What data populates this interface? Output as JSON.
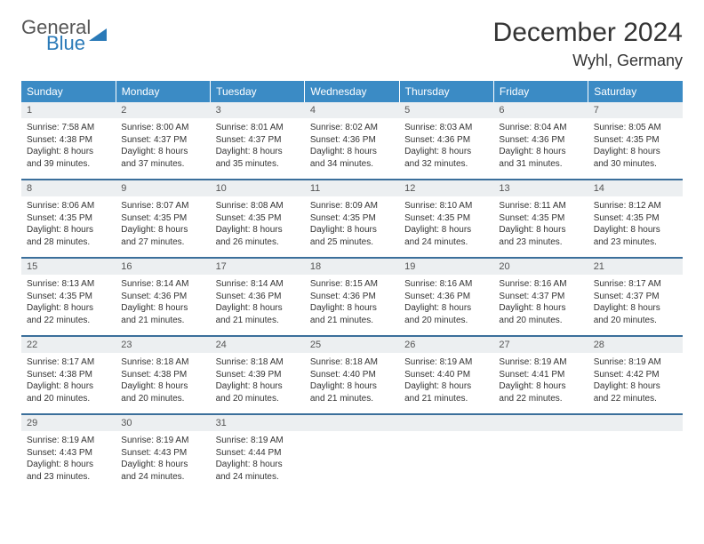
{
  "logo": {
    "general": "General",
    "blue": "Blue"
  },
  "title": "December 2024",
  "location": "Wyhl, Germany",
  "colors": {
    "header_bg": "#3b8bc5",
    "header_text": "#ffffff",
    "daynum_bg": "#eceff1",
    "border": "#3b6f9b",
    "logo_blue": "#2a7ab8",
    "text": "#333333"
  },
  "day_headers": [
    "Sunday",
    "Monday",
    "Tuesday",
    "Wednesday",
    "Thursday",
    "Friday",
    "Saturday"
  ],
  "weeks": [
    [
      {
        "n": "1",
        "sr": "7:58 AM",
        "ss": "4:38 PM",
        "dlh": "8",
        "dlm": "39"
      },
      {
        "n": "2",
        "sr": "8:00 AM",
        "ss": "4:37 PM",
        "dlh": "8",
        "dlm": "37"
      },
      {
        "n": "3",
        "sr": "8:01 AM",
        "ss": "4:37 PM",
        "dlh": "8",
        "dlm": "35"
      },
      {
        "n": "4",
        "sr": "8:02 AM",
        "ss": "4:36 PM",
        "dlh": "8",
        "dlm": "34"
      },
      {
        "n": "5",
        "sr": "8:03 AM",
        "ss": "4:36 PM",
        "dlh": "8",
        "dlm": "32"
      },
      {
        "n": "6",
        "sr": "8:04 AM",
        "ss": "4:36 PM",
        "dlh": "8",
        "dlm": "31"
      },
      {
        "n": "7",
        "sr": "8:05 AM",
        "ss": "4:35 PM",
        "dlh": "8",
        "dlm": "30"
      }
    ],
    [
      {
        "n": "8",
        "sr": "8:06 AM",
        "ss": "4:35 PM",
        "dlh": "8",
        "dlm": "28"
      },
      {
        "n": "9",
        "sr": "8:07 AM",
        "ss": "4:35 PM",
        "dlh": "8",
        "dlm": "27"
      },
      {
        "n": "10",
        "sr": "8:08 AM",
        "ss": "4:35 PM",
        "dlh": "8",
        "dlm": "26"
      },
      {
        "n": "11",
        "sr": "8:09 AM",
        "ss": "4:35 PM",
        "dlh": "8",
        "dlm": "25"
      },
      {
        "n": "12",
        "sr": "8:10 AM",
        "ss": "4:35 PM",
        "dlh": "8",
        "dlm": "24"
      },
      {
        "n": "13",
        "sr": "8:11 AM",
        "ss": "4:35 PM",
        "dlh": "8",
        "dlm": "23"
      },
      {
        "n": "14",
        "sr": "8:12 AM",
        "ss": "4:35 PM",
        "dlh": "8",
        "dlm": "23"
      }
    ],
    [
      {
        "n": "15",
        "sr": "8:13 AM",
        "ss": "4:35 PM",
        "dlh": "8",
        "dlm": "22"
      },
      {
        "n": "16",
        "sr": "8:14 AM",
        "ss": "4:36 PM",
        "dlh": "8",
        "dlm": "21"
      },
      {
        "n": "17",
        "sr": "8:14 AM",
        "ss": "4:36 PM",
        "dlh": "8",
        "dlm": "21"
      },
      {
        "n": "18",
        "sr": "8:15 AM",
        "ss": "4:36 PM",
        "dlh": "8",
        "dlm": "21"
      },
      {
        "n": "19",
        "sr": "8:16 AM",
        "ss": "4:36 PM",
        "dlh": "8",
        "dlm": "20"
      },
      {
        "n": "20",
        "sr": "8:16 AM",
        "ss": "4:37 PM",
        "dlh": "8",
        "dlm": "20"
      },
      {
        "n": "21",
        "sr": "8:17 AM",
        "ss": "4:37 PM",
        "dlh": "8",
        "dlm": "20"
      }
    ],
    [
      {
        "n": "22",
        "sr": "8:17 AM",
        "ss": "4:38 PM",
        "dlh": "8",
        "dlm": "20"
      },
      {
        "n": "23",
        "sr": "8:18 AM",
        "ss": "4:38 PM",
        "dlh": "8",
        "dlm": "20"
      },
      {
        "n": "24",
        "sr": "8:18 AM",
        "ss": "4:39 PM",
        "dlh": "8",
        "dlm": "20"
      },
      {
        "n": "25",
        "sr": "8:18 AM",
        "ss": "4:40 PM",
        "dlh": "8",
        "dlm": "21"
      },
      {
        "n": "26",
        "sr": "8:19 AM",
        "ss": "4:40 PM",
        "dlh": "8",
        "dlm": "21"
      },
      {
        "n": "27",
        "sr": "8:19 AM",
        "ss": "4:41 PM",
        "dlh": "8",
        "dlm": "22"
      },
      {
        "n": "28",
        "sr": "8:19 AM",
        "ss": "4:42 PM",
        "dlh": "8",
        "dlm": "22"
      }
    ],
    [
      {
        "n": "29",
        "sr": "8:19 AM",
        "ss": "4:43 PM",
        "dlh": "8",
        "dlm": "23"
      },
      {
        "n": "30",
        "sr": "8:19 AM",
        "ss": "4:43 PM",
        "dlh": "8",
        "dlm": "24"
      },
      {
        "n": "31",
        "sr": "8:19 AM",
        "ss": "4:44 PM",
        "dlh": "8",
        "dlm": "24"
      },
      null,
      null,
      null,
      null
    ]
  ],
  "labels": {
    "sunrise": "Sunrise:",
    "sunset": "Sunset:",
    "daylight_prefix": "Daylight:",
    "hours_word": "hours",
    "and_word": "and",
    "minutes_word": "minutes."
  }
}
